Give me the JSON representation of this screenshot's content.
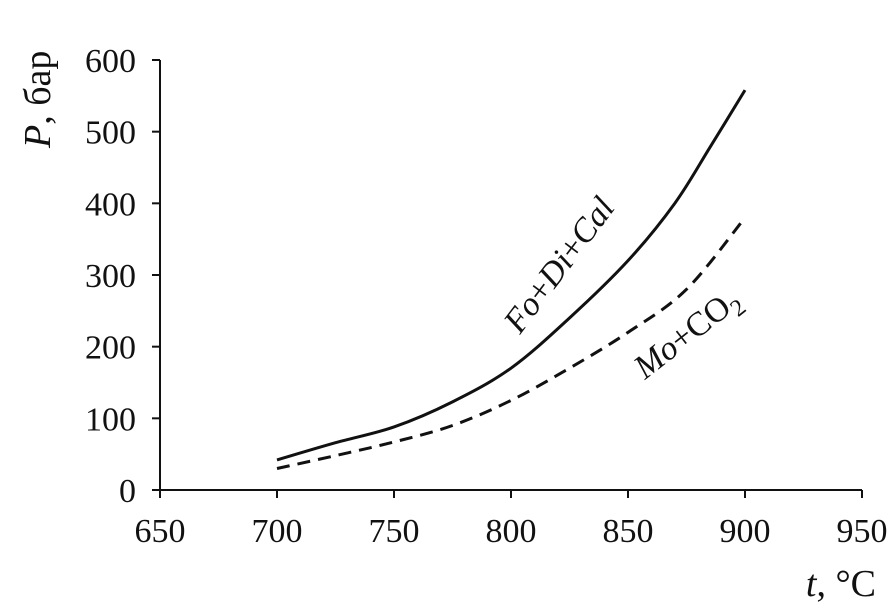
{
  "chart_data": {
    "type": "line",
    "xlabel_var": "t",
    "xlabel_unit": ", °C",
    "ylabel_var": "P",
    "ylabel_unit": ", бар",
    "xlim": [
      650,
      950
    ],
    "ylim": [
      0,
      600
    ],
    "x_ticks": [
      650,
      700,
      750,
      800,
      850,
      900,
      950
    ],
    "y_ticks": [
      0,
      100,
      200,
      300,
      400,
      500,
      600
    ],
    "grid": false,
    "series": [
      {
        "label_parts": [
          "Fo",
          "+",
          "Di",
          "+",
          "Cal"
        ],
        "style": "solid",
        "color": "#111111",
        "x": [
          700,
          725,
          750,
          775,
          800,
          825,
          850,
          870,
          885,
          900
        ],
        "y": [
          42,
          66,
          88,
          123,
          170,
          240,
          320,
          400,
          478,
          558
        ]
      },
      {
        "label_parts": [
          "Mo",
          "+CO",
          "2"
        ],
        "style": "dashed",
        "color": "#111111",
        "x": [
          700,
          725,
          750,
          775,
          800,
          825,
          850,
          875,
          900
        ],
        "y": [
          30,
          48,
          67,
          90,
          125,
          170,
          220,
          280,
          380
        ]
      }
    ]
  }
}
